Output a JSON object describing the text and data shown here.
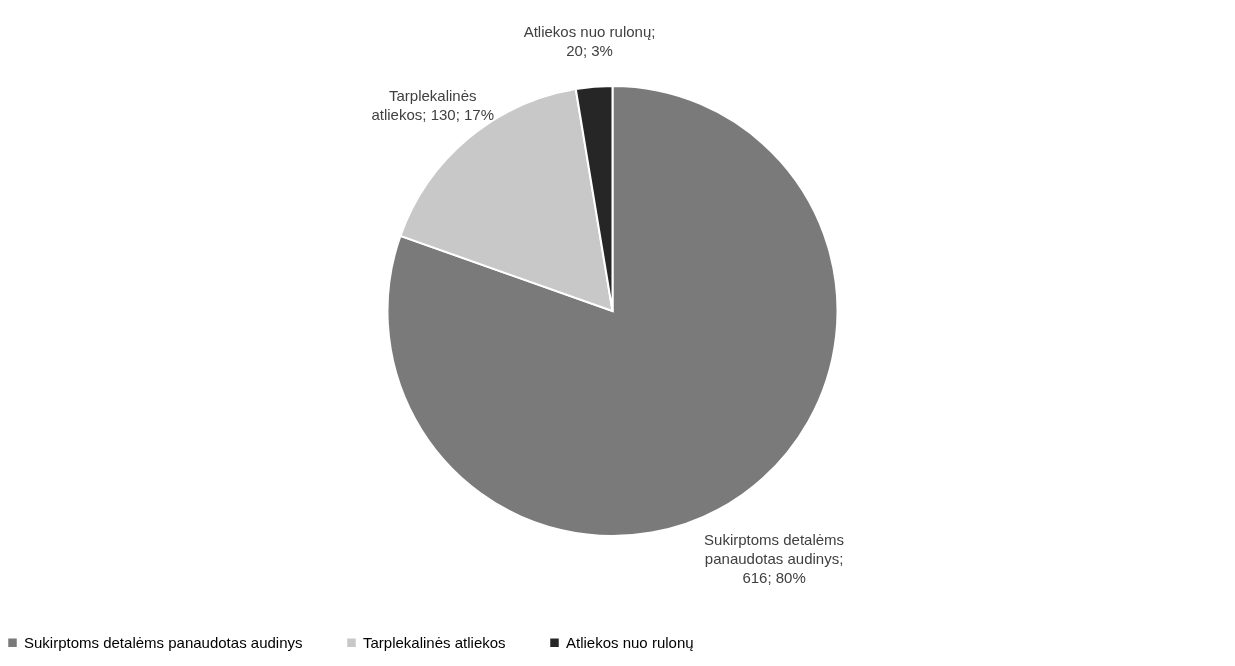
{
  "chart_data": {
    "type": "pie",
    "categories": [
      "Sukirptoms detalėms panaudotas audinys",
      "Tarplekalinės atliekos",
      "Atliekos nuo rulonų"
    ],
    "values": [
      616,
      130,
      20
    ],
    "colors": [
      "#7a7a7a",
      "#c8c8c8",
      "#262626"
    ],
    "value_labels": [
      "Sukirptoms detalėms panaudotas audinys; 616; 80%",
      "Tarplekalinės atliekos; 130; 17%",
      "Atliekos nuo rulonų; 20; 3%"
    ],
    "legend": "bottom"
  }
}
